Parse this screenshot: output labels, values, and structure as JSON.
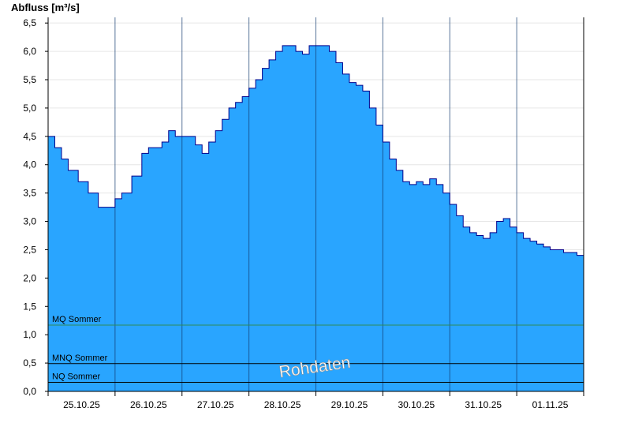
{
  "chart_data": {
    "type": "area",
    "ylabel": "Abfluss [m³/s]",
    "watermark": "Rohdaten",
    "ylim": [
      0,
      6.6
    ],
    "yticks": [
      "0,0",
      "0,5",
      "1,0",
      "1,5",
      "2,0",
      "2,5",
      "3,0",
      "3,5",
      "4,0",
      "4,5",
      "5,0",
      "5,5",
      "6,0",
      "6,5"
    ],
    "xlim": [
      0,
      8
    ],
    "x_tick_labels": [
      "25.10.25",
      "26.10.25",
      "27.10.25",
      "28.10.25",
      "29.10.25",
      "30.10.25",
      "31.10.25",
      "01.11.25"
    ],
    "series": [
      {
        "color": "#29a5ff",
        "line_color": "#00008b",
        "x": [
          0.0,
          0.1,
          0.2,
          0.3,
          0.45,
          0.6,
          0.75,
          0.9,
          1.0,
          1.1,
          1.25,
          1.4,
          1.5,
          1.6,
          1.7,
          1.8,
          1.9,
          2.0,
          2.1,
          2.2,
          2.3,
          2.4,
          2.5,
          2.6,
          2.7,
          2.8,
          2.9,
          3.0,
          3.1,
          3.2,
          3.3,
          3.4,
          3.5,
          3.6,
          3.7,
          3.8,
          3.9,
          4.0,
          4.1,
          4.2,
          4.3,
          4.4,
          4.5,
          4.6,
          4.7,
          4.8,
          4.9,
          5.0,
          5.1,
          5.2,
          5.3,
          5.4,
          5.5,
          5.6,
          5.7,
          5.8,
          5.9,
          6.0,
          6.1,
          6.2,
          6.3,
          6.4,
          6.5,
          6.6,
          6.7,
          6.8,
          6.9,
          7.0,
          7.1,
          7.2,
          7.3,
          7.4,
          7.5,
          7.6,
          7.7,
          7.8,
          7.9,
          8.0
        ],
        "values": [
          4.5,
          4.3,
          4.1,
          3.9,
          3.7,
          3.5,
          3.25,
          3.25,
          3.4,
          3.5,
          3.8,
          4.2,
          4.3,
          4.3,
          4.4,
          4.6,
          4.5,
          4.5,
          4.5,
          4.35,
          4.2,
          4.4,
          4.6,
          4.8,
          5.0,
          5.1,
          5.2,
          5.35,
          5.5,
          5.7,
          5.85,
          6.0,
          6.1,
          6.1,
          6.0,
          5.95,
          6.1,
          6.1,
          6.1,
          6.0,
          5.8,
          5.6,
          5.45,
          5.4,
          5.3,
          5.0,
          4.7,
          4.4,
          4.1,
          3.9,
          3.7,
          3.65,
          3.7,
          3.65,
          3.75,
          3.65,
          3.5,
          3.3,
          3.1,
          2.9,
          2.8,
          2.75,
          2.7,
          2.8,
          3.0,
          3.05,
          2.9,
          2.8,
          2.7,
          2.65,
          2.6,
          2.55,
          2.5,
          2.5,
          2.45,
          2.45,
          2.4,
          2.35
        ]
      }
    ],
    "reference_lines": [
      {
        "label": "MQ Sommer",
        "value": 1.17,
        "color": "#2e8b57"
      },
      {
        "label": "MNQ Sommer",
        "value": 0.49,
        "color": "#000000"
      },
      {
        "label": "NQ Sommer",
        "value": 0.16,
        "color": "#000000"
      }
    ],
    "grid": "horizontal"
  }
}
